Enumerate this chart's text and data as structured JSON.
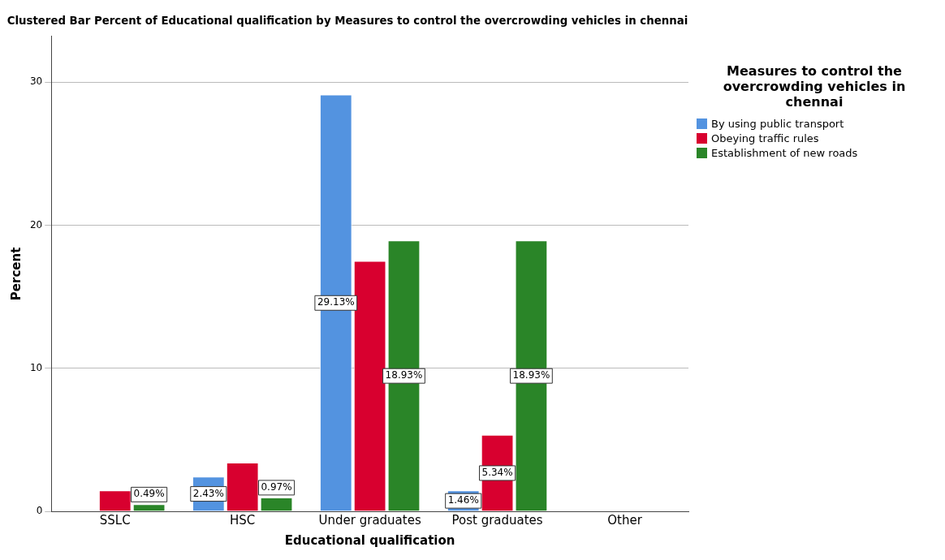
{
  "chart_data": {
    "type": "bar",
    "title": "Clustered Bar Percent of Educational qualification by Measures to control the overcrowding vehicles in chennai",
    "xlabel": "Educational qualification",
    "ylabel": "Percent",
    "legend_title": "Measures to control the overcrowding vehicles in chennai",
    "legend": "right",
    "grid": "y",
    "ylim": [
      0,
      33.2
    ],
    "yticks": [
      0,
      10,
      20,
      30
    ],
    "categories": [
      "SSLC",
      "HSC",
      "Under graduates",
      "Post graduates",
      "Other"
    ],
    "series": [
      {
        "name": "By using public transport",
        "color": "#5393e0",
        "values": [
          null,
          2.43,
          29.13,
          1.46,
          null
        ],
        "value_labels": [
          null,
          "2.43%",
          "29.13%",
          "1.46%",
          null
        ]
      },
      {
        "name": "Obeying traffic rules",
        "color": "#d8002f",
        "values": [
          1.46,
          3.4,
          17.5,
          5.34,
          null
        ],
        "value_labels": [
          null,
          null,
          null,
          "5.34%",
          null
        ]
      },
      {
        "name": "Establishment of new roads",
        "color": "#2a8528",
        "values": [
          0.49,
          0.97,
          18.93,
          18.93,
          null
        ],
        "value_labels": [
          "0.49%",
          "0.97%",
          "18.93%",
          "18.93%",
          null
        ]
      }
    ]
  }
}
